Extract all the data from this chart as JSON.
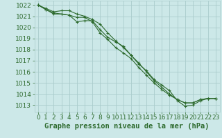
{
  "background_color": "#cce8e8",
  "grid_color": "#aacccc",
  "line_color": "#2d6a2d",
  "marker_color": "#2d6a2d",
  "xlabel": "Graphe pression niveau de la mer (hPa)",
  "xlabel_fontsize": 7.5,
  "tick_fontsize": 6.5,
  "ylim": [
    1012.4,
    1022.4
  ],
  "xlim": [
    -0.5,
    23.5
  ],
  "yticks": [
    1013,
    1014,
    1015,
    1016,
    1017,
    1018,
    1019,
    1020,
    1021,
    1022
  ],
  "xticks": [
    0,
    1,
    2,
    3,
    4,
    5,
    6,
    7,
    8,
    9,
    10,
    11,
    12,
    13,
    14,
    15,
    16,
    17,
    18,
    19,
    20,
    21,
    22,
    23
  ],
  "series": [
    [
      1022.0,
      1021.6,
      1021.2,
      1021.2,
      1021.1,
      1020.5,
      1020.6,
      1020.6,
      1019.8,
      1019.1,
      1018.7,
      1018.3,
      1017.5,
      1016.7,
      1016.1,
      1015.3,
      1014.8,
      1014.3,
      1013.4,
      1012.9,
      1013.0,
      1013.4,
      1013.6,
      1013.6
    ],
    [
      1022.0,
      1021.6,
      1021.3,
      1021.2,
      1021.1,
      1020.9,
      1020.9,
      1020.5,
      1019.5,
      1018.9,
      1018.2,
      1017.7,
      1017.2,
      1016.4,
      1015.7,
      1015.0,
      1014.4,
      1013.9,
      1013.5,
      1013.2,
      1013.2,
      1013.5,
      1013.6,
      1013.6
    ],
    [
      1022.0,
      1021.7,
      1021.4,
      1021.5,
      1021.5,
      1021.2,
      1021.0,
      1020.7,
      1020.3,
      1019.5,
      1018.8,
      1018.2,
      1017.5,
      1016.8,
      1016.0,
      1015.2,
      1014.6,
      1014.0,
      1013.5,
      1013.2,
      1013.2,
      1013.5,
      1013.6,
      1013.6
    ]
  ]
}
